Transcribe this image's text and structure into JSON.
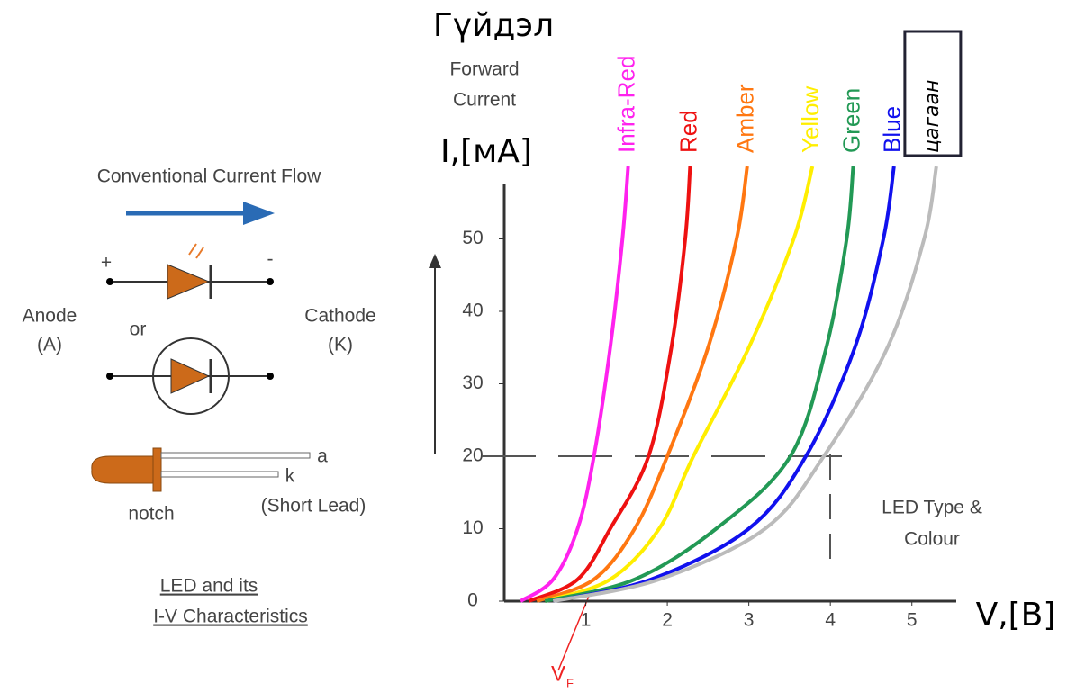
{
  "chart_data": {
    "type": "line",
    "y_title": "Гүйдэл",
    "y_subtitle": [
      "Forward",
      "Current"
    ],
    "y_label": "I,[мА]",
    "x_label": "V,[В]",
    "xlim": [
      0,
      5.5
    ],
    "ylim": [
      0,
      60
    ],
    "xticks": [
      1,
      2,
      3,
      4,
      5
    ],
    "yticks": [
      0,
      10,
      20,
      30,
      40,
      50
    ],
    "reference_y": 20,
    "annotation": [
      "LED Type &",
      "Colour"
    ],
    "vf_label": {
      "main": "V",
      "sub": "F"
    },
    "series": [
      {
        "name": "Infra-Red",
        "color": "#ff22ee",
        "x": [
          0.2,
          0.6,
          0.9,
          1.1,
          1.3,
          1.45,
          1.52
        ],
        "values": [
          0,
          3,
          10,
          20,
          35,
          50,
          60
        ]
      },
      {
        "name": "Red",
        "color": "#ee1111",
        "x": [
          0.3,
          0.9,
          1.3,
          1.77,
          2.05,
          2.22,
          2.28
        ],
        "values": [
          0,
          3,
          10,
          20,
          35,
          50,
          60
        ]
      },
      {
        "name": "Amber",
        "color": "#ff7711",
        "x": [
          0.4,
          1.1,
          1.6,
          2.0,
          2.5,
          2.85,
          2.98
        ],
        "values": [
          0,
          3,
          10,
          20,
          35,
          50,
          60
        ]
      },
      {
        "name": "Yellow",
        "color": "#ffee00",
        "x": [
          0.5,
          1.3,
          1.9,
          2.32,
          3.0,
          3.55,
          3.78
        ],
        "values": [
          0,
          3,
          10,
          20,
          35,
          50,
          60
        ]
      },
      {
        "name": "Green",
        "color": "#229955",
        "x": [
          0.5,
          1.6,
          2.6,
          3.51,
          3.95,
          4.2,
          4.28
        ],
        "values": [
          0,
          3,
          10,
          20,
          35,
          50,
          60
        ]
      },
      {
        "name": "Blue",
        "color": "#1111ee",
        "x": [
          0.6,
          1.8,
          3.0,
          3.7,
          4.3,
          4.65,
          4.78
        ],
        "values": [
          0,
          3,
          10,
          20,
          35,
          50,
          60
        ]
      },
      {
        "name": "цагаан",
        "color": "#bbbbbb",
        "x": [
          0.6,
          1.9,
          3.2,
          3.92,
          4.7,
          5.15,
          5.3
        ],
        "values": [
          0,
          3,
          10,
          20,
          35,
          50,
          60
        ]
      }
    ]
  },
  "diagram": {
    "flow": "Conventional Current Flow",
    "plus": "+",
    "minus": "-",
    "anode": [
      "Anode",
      "(A)"
    ],
    "or": "or",
    "cathode": [
      "Cathode",
      "(K)"
    ],
    "lead_a": "a",
    "lead_k": "k",
    "short_lead": "(Short Lead)",
    "notch": "notch",
    "caption": [
      "LED and its",
      "I-V Characteristics"
    ]
  }
}
